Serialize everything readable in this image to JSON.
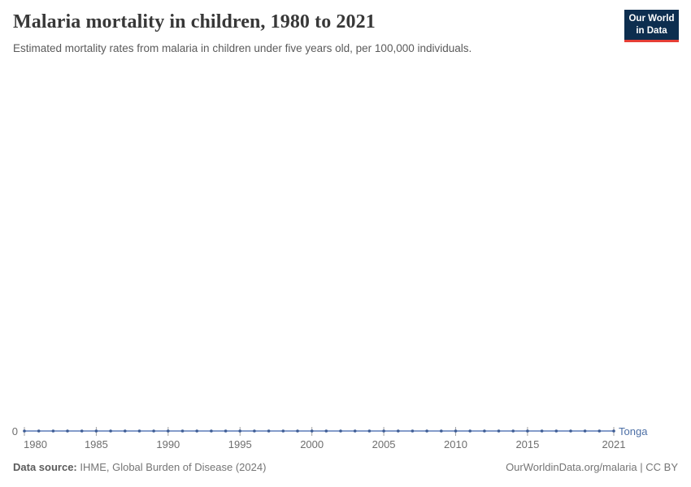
{
  "header": {
    "title": "Malaria mortality in children, 1980 to 2021",
    "subtitle": "Estimated mortality rates from malaria in children under five years old, per 100,000 individuals.",
    "logo": {
      "line1": "Our World",
      "line2": "in Data"
    }
  },
  "footer": {
    "data_source_label": "Data source:",
    "data_source_value": " IHME, Global Burden of Disease (2024)",
    "attribution": "OurWorldinData.org/malaria | CC BY"
  },
  "colors": {
    "series_line": "#5b7cb9",
    "series_dot": "#3d5c94",
    "entity_label": "#4c6fa5",
    "axis_text": "#6e6e6e",
    "tick_mark": "#a3a3a3",
    "logo_bg": "#0d2e4f",
    "logo_red": "#e63e36"
  },
  "chart_data": {
    "type": "line",
    "title": "Malaria mortality in children, 1980 to 2021",
    "xlabel": "",
    "ylabel": "",
    "grid": false,
    "legend_position": "line-end-label",
    "x": [
      1980,
      1981,
      1982,
      1983,
      1984,
      1985,
      1986,
      1987,
      1988,
      1989,
      1990,
      1991,
      1992,
      1993,
      1994,
      1995,
      1996,
      1997,
      1998,
      1999,
      2000,
      2001,
      2002,
      2003,
      2004,
      2005,
      2006,
      2007,
      2008,
      2009,
      2010,
      2011,
      2012,
      2013,
      2014,
      2015,
      2016,
      2017,
      2018,
      2019,
      2020,
      2021
    ],
    "x_ticks": [
      1980,
      1985,
      1990,
      1995,
      2000,
      2005,
      2010,
      2015,
      2021
    ],
    "y_ticks": [
      0
    ],
    "ylim": [
      0,
      null
    ],
    "series": [
      {
        "name": "Tonga",
        "values": [
          0,
          0,
          0,
          0,
          0,
          0,
          0,
          0,
          0,
          0,
          0,
          0,
          0,
          0,
          0,
          0,
          0,
          0,
          0,
          0,
          0,
          0,
          0,
          0,
          0,
          0,
          0,
          0,
          0,
          0,
          0,
          0,
          0,
          0,
          0,
          0,
          0,
          0,
          0,
          0,
          0,
          0
        ]
      }
    ]
  }
}
